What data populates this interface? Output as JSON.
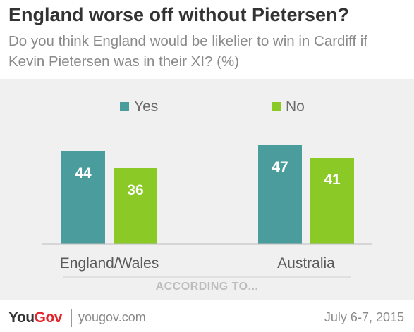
{
  "header": {
    "title": "England worse off without Pietersen?",
    "subtitle": "Do you think England would be likelier to win in Cardiff if Kevin Pietersen was in their XI? (%)"
  },
  "chart_data": {
    "type": "bar",
    "categories": [
      "England/Wales",
      "Australia"
    ],
    "series": [
      {
        "name": "Yes",
        "values": [
          44,
          47
        ],
        "color": "#4a9d9c"
      },
      {
        "name": "No",
        "values": [
          36,
          41
        ],
        "color": "#8ac926"
      }
    ],
    "ylim": [
      0,
      60
    ],
    "legend": "top",
    "grid": false
  },
  "source": "ACCORDING TO...",
  "footer": {
    "logo_you": "You",
    "logo_gov": "Gov",
    "site": "yougov.com",
    "date": "July 6-7, 2015"
  }
}
